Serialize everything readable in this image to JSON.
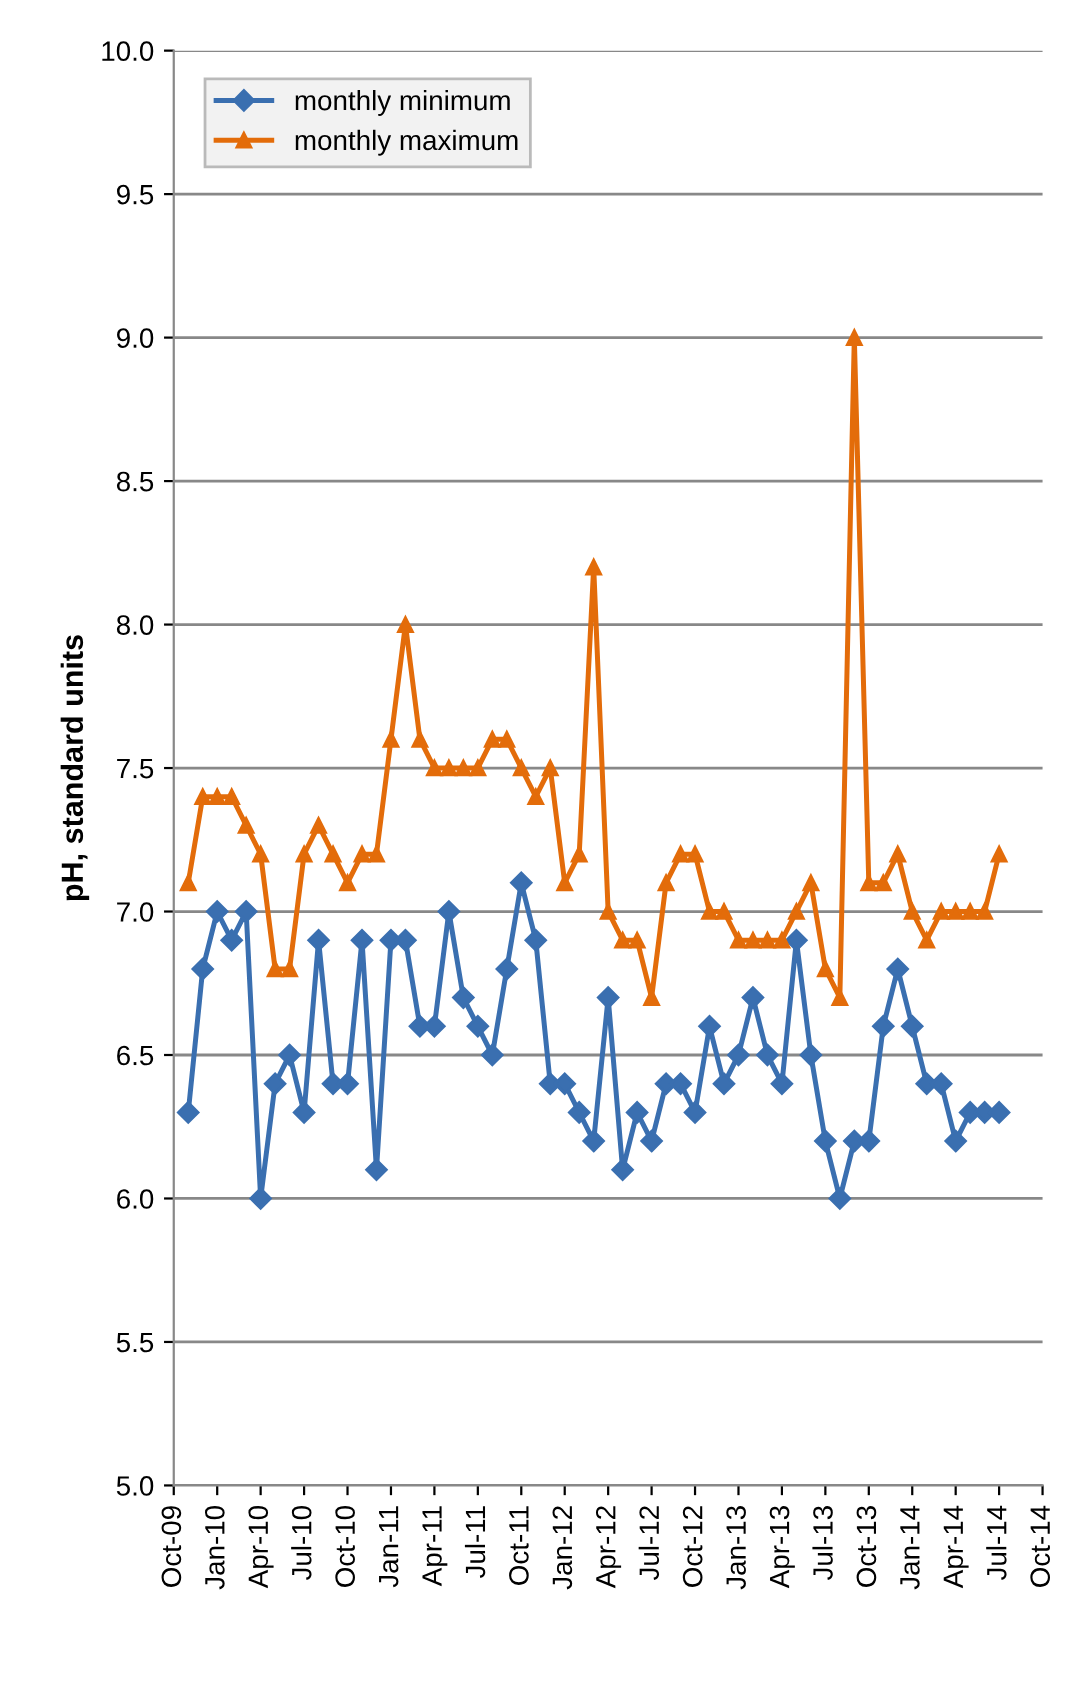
{
  "chart_data": {
    "type": "line",
    "ylabel": "pH, standard units",
    "x": [
      "2009-11",
      "2009-12",
      "2010-01",
      "2010-02",
      "2010-03",
      "2010-04",
      "2010-05",
      "2010-06",
      "2010-07",
      "2010-08",
      "2010-09",
      "2010-10",
      "2010-11",
      "2010-12",
      "2011-01",
      "2011-02",
      "2011-03",
      "2011-04",
      "2011-05",
      "2011-06",
      "2011-07",
      "2011-08",
      "2011-09",
      "2011-10",
      "2011-11",
      "2011-12",
      "2012-01",
      "2012-02",
      "2012-03",
      "2012-04",
      "2012-05",
      "2012-06",
      "2012-07",
      "2012-08",
      "2012-09",
      "2012-10",
      "2012-11",
      "2012-12",
      "2013-01",
      "2013-02",
      "2013-03",
      "2013-04",
      "2013-05",
      "2013-06",
      "2013-07",
      "2013-08",
      "2013-09",
      "2013-10",
      "2013-11",
      "2013-12",
      "2014-01",
      "2014-02",
      "2014-03",
      "2014-04",
      "2014-05",
      "2014-06",
      "2014-07"
    ],
    "series": [
      {
        "name": "monthly minimum",
        "color": "#3a6fb0",
        "marker": "diamond",
        "values": [
          6.3,
          6.8,
          7.0,
          6.9,
          7.0,
          6.0,
          6.4,
          6.5,
          6.3,
          6.9,
          6.4,
          6.4,
          6.9,
          6.1,
          6.9,
          6.9,
          6.6,
          6.6,
          7.0,
          6.7,
          6.6,
          6.5,
          6.8,
          7.1,
          6.9,
          6.4,
          6.4,
          6.3,
          6.2,
          6.7,
          6.1,
          6.3,
          6.2,
          6.4,
          6.4,
          6.3,
          6.6,
          6.4,
          6.5,
          6.7,
          6.5,
          6.4,
          6.9,
          6.5,
          6.2,
          6.0,
          6.2,
          6.2,
          6.6,
          6.8,
          6.6,
          6.4,
          6.4,
          6.2,
          6.3,
          6.3,
          6.3
        ]
      },
      {
        "name": "monthly maximum",
        "color": "#e36c0a",
        "marker": "triangle",
        "values": [
          7.1,
          7.4,
          7.4,
          7.4,
          7.3,
          7.2,
          6.8,
          6.8,
          7.2,
          7.3,
          7.2,
          7.1,
          7.2,
          7.2,
          7.6,
          8.0,
          7.6,
          7.5,
          7.5,
          7.5,
          7.5,
          7.6,
          7.6,
          7.5,
          7.4,
          7.5,
          7.1,
          7.2,
          8.2,
          7.0,
          6.9,
          6.9,
          6.7,
          7.1,
          7.2,
          7.2,
          7.0,
          7.0,
          6.9,
          6.9,
          6.9,
          6.9,
          7.0,
          7.1,
          6.8,
          6.7,
          9.0,
          7.1,
          7.1,
          7.2,
          7.0,
          6.9,
          7.0,
          7.0,
          7.0,
          7.0,
          7.2
        ]
      }
    ],
    "xlim": [
      "2009-10",
      "2014-10"
    ],
    "xticks": [
      {
        "value": "2009-10",
        "label": "Oct-09"
      },
      {
        "value": "2010-01",
        "label": "Jan-10"
      },
      {
        "value": "2010-04",
        "label": "Apr-10"
      },
      {
        "value": "2010-07",
        "label": "Jul-10"
      },
      {
        "value": "2010-10",
        "label": "Oct-10"
      },
      {
        "value": "2011-01",
        "label": "Jan-11"
      },
      {
        "value": "2011-04",
        "label": "Apr-11"
      },
      {
        "value": "2011-07",
        "label": "Jul-11"
      },
      {
        "value": "2011-10",
        "label": "Oct-11"
      },
      {
        "value": "2012-01",
        "label": "Jan-12"
      },
      {
        "value": "2012-04",
        "label": "Apr-12"
      },
      {
        "value": "2012-07",
        "label": "Jul-12"
      },
      {
        "value": "2012-10",
        "label": "Oct-12"
      },
      {
        "value": "2013-01",
        "label": "Jan-13"
      },
      {
        "value": "2013-04",
        "label": "Apr-13"
      },
      {
        "value": "2013-07",
        "label": "Jul-13"
      },
      {
        "value": "2013-10",
        "label": "Oct-13"
      },
      {
        "value": "2014-01",
        "label": "Jan-14"
      },
      {
        "value": "2014-04",
        "label": "Apr-14"
      },
      {
        "value": "2014-07",
        "label": "Jul-14"
      },
      {
        "value": "2014-10",
        "label": "Oct-14"
      }
    ],
    "ylim": [
      5,
      10
    ],
    "yticks": [
      {
        "value": 5,
        "label": "5.0"
      },
      {
        "value": 5.5,
        "label": "5.5"
      },
      {
        "value": 6,
        "label": "6.0"
      },
      {
        "value": 6.5,
        "label": "6.5"
      },
      {
        "value": 7,
        "label": "7.0"
      },
      {
        "value": 7.5,
        "label": "7.5"
      },
      {
        "value": 8,
        "label": "8.0"
      },
      {
        "value": 8.5,
        "label": "8.5"
      },
      {
        "value": 9,
        "label": "9.0"
      },
      {
        "value": 9.5,
        "label": "9.5"
      },
      {
        "value": 10,
        "label": "10.0"
      }
    ],
    "grid": "y",
    "legend": "top left"
  }
}
